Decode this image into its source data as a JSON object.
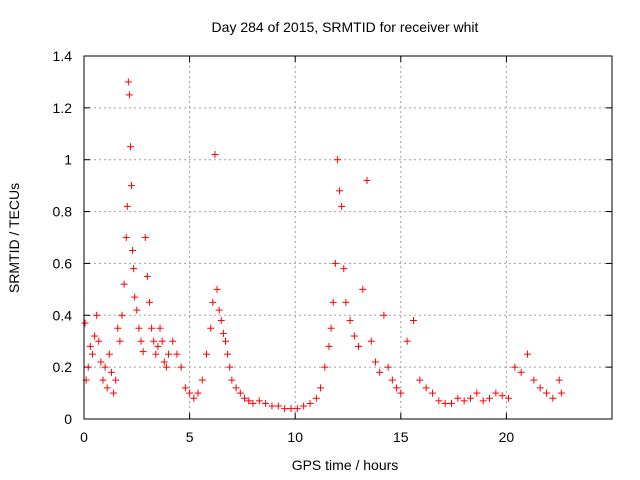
{
  "chart_data": {
    "type": "scatter",
    "title": "Day 284 of 2015, SRMTID for receiver whit",
    "xlabel": "GPS time / hours",
    "ylabel": "SRMTID / TECUs",
    "xlim": [
      0,
      25
    ],
    "ylim": [
      0,
      1.4
    ],
    "xticks": [
      0,
      5,
      10,
      15,
      20
    ],
    "yticks": [
      0,
      0.2,
      0.4,
      0.6,
      0.8,
      1,
      1.2,
      1.4
    ],
    "xtick_labels": [
      "0",
      "5",
      "10",
      "15",
      "20"
    ],
    "ytick_labels": [
      "0",
      "0.2",
      "0.4",
      "0.6",
      "0.8",
      "1",
      "1.2",
      "1.4"
    ],
    "grid": true,
    "marker": "+",
    "series": [
      {
        "name": "SRMTID",
        "color": "#ff0000",
        "x": [
          0.05,
          0.1,
          0.2,
          0.3,
          0.4,
          0.5,
          0.6,
          0.7,
          0.8,
          0.9,
          1.0,
          1.1,
          1.2,
          1.3,
          1.4,
          1.5,
          1.6,
          1.7,
          1.8,
          1.9,
          2.0,
          2.05,
          2.1,
          2.15,
          2.2,
          2.25,
          2.3,
          2.35,
          2.4,
          2.5,
          2.6,
          2.7,
          2.8,
          2.9,
          3.0,
          3.1,
          3.2,
          3.3,
          3.4,
          3.5,
          3.6,
          3.7,
          3.8,
          3.9,
          4.0,
          4.2,
          4.4,
          4.6,
          4.8,
          5.0,
          5.2,
          5.4,
          5.6,
          5.8,
          6.0,
          6.1,
          6.2,
          6.3,
          6.4,
          6.5,
          6.6,
          6.7,
          6.8,
          6.9,
          7.0,
          7.2,
          7.4,
          7.6,
          7.8,
          8.0,
          8.3,
          8.6,
          8.9,
          9.2,
          9.5,
          9.8,
          10.1,
          10.4,
          10.7,
          11.0,
          11.2,
          11.4,
          11.6,
          11.7,
          11.8,
          11.9,
          12.0,
          12.1,
          12.2,
          12.3,
          12.4,
          12.6,
          12.8,
          13.0,
          13.2,
          13.4,
          13.6,
          13.8,
          14.0,
          14.2,
          14.4,
          14.6,
          14.8,
          15.0,
          15.3,
          15.6,
          15.9,
          16.2,
          16.5,
          16.8,
          17.1,
          17.4,
          17.7,
          18.0,
          18.3,
          18.6,
          18.9,
          19.2,
          19.5,
          19.8,
          20.1,
          20.4,
          20.7,
          21.0,
          21.3,
          21.6,
          21.9,
          22.2,
          22.5,
          22.6
        ],
        "y": [
          0.37,
          0.15,
          0.2,
          0.28,
          0.25,
          0.32,
          0.4,
          0.3,
          0.22,
          0.15,
          0.2,
          0.12,
          0.25,
          0.18,
          0.1,
          0.15,
          0.35,
          0.3,
          0.4,
          0.52,
          0.7,
          0.82,
          1.3,
          1.25,
          1.05,
          0.9,
          0.65,
          0.58,
          0.47,
          0.42,
          0.35,
          0.3,
          0.26,
          0.7,
          0.55,
          0.45,
          0.35,
          0.3,
          0.25,
          0.28,
          0.35,
          0.3,
          0.22,
          0.2,
          0.25,
          0.3,
          0.25,
          0.2,
          0.12,
          0.1,
          0.08,
          0.1,
          0.15,
          0.25,
          0.35,
          0.45,
          1.02,
          0.5,
          0.42,
          0.38,
          0.33,
          0.3,
          0.25,
          0.2,
          0.15,
          0.12,
          0.1,
          0.08,
          0.07,
          0.06,
          0.07,
          0.06,
          0.05,
          0.05,
          0.04,
          0.04,
          0.04,
          0.05,
          0.06,
          0.08,
          0.12,
          0.2,
          0.28,
          0.35,
          0.45,
          0.6,
          1.0,
          0.88,
          0.82,
          0.58,
          0.45,
          0.38,
          0.32,
          0.28,
          0.5,
          0.92,
          0.3,
          0.22,
          0.18,
          0.4,
          0.2,
          0.15,
          0.12,
          0.1,
          0.3,
          0.38,
          0.15,
          0.12,
          0.1,
          0.07,
          0.06,
          0.06,
          0.08,
          0.07,
          0.08,
          0.1,
          0.07,
          0.08,
          0.1,
          0.09,
          0.08,
          0.2,
          0.18,
          0.25,
          0.15,
          0.12,
          0.1,
          0.08,
          0.15,
          0.1
        ]
      }
    ]
  }
}
